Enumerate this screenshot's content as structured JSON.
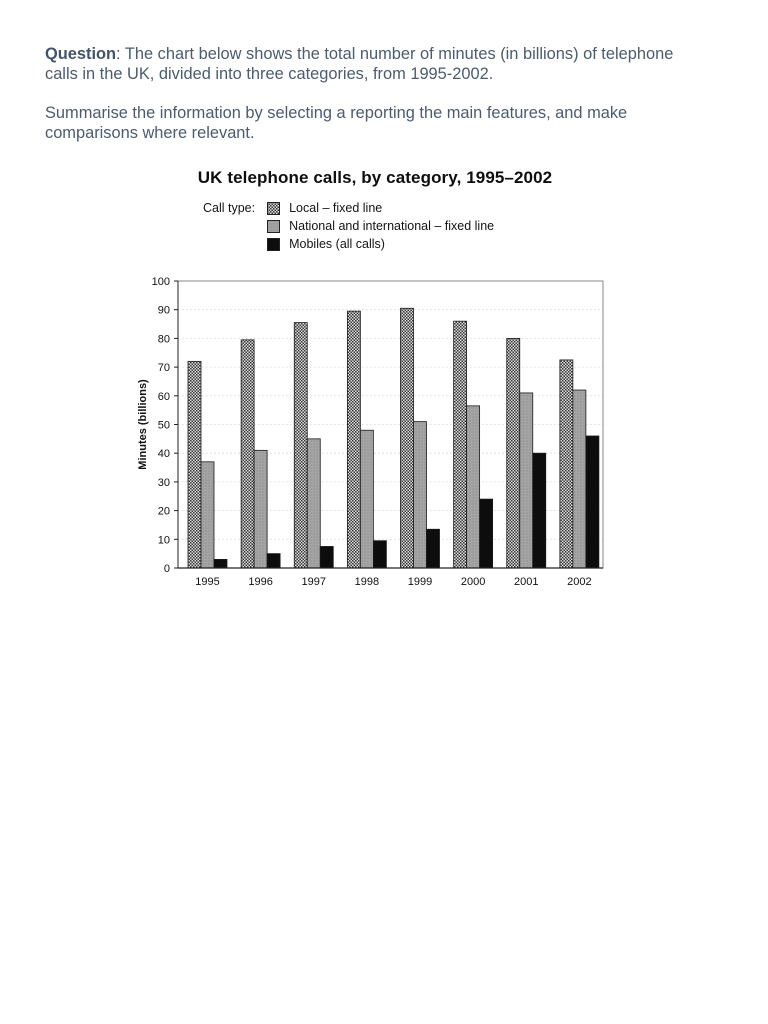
{
  "page": {
    "background": "#ffffff",
    "text_color": "#4c5b6d"
  },
  "question": {
    "label": "Question",
    "text": ": The chart below shows the total number of minutes (in billions) of telephone calls in the UK, divided into three categories, from 1995-2002.",
    "instruction": "Summarise the information by selecting a reporting the main features, and make comparisons where relevant."
  },
  "chart_data": {
    "type": "bar",
    "title": "UK telephone calls, by category, 1995–2002",
    "legend_caption": "Call type:",
    "ylabel": "Minutes (billions)",
    "xlabel": "",
    "ylim": [
      0,
      100
    ],
    "ytick_step": 10,
    "grid": "horizontal-dotted",
    "legend_position": "top-left",
    "categories": [
      "1995",
      "1996",
      "1997",
      "1998",
      "1999",
      "2000",
      "2001",
      "2002"
    ],
    "series": [
      {
        "id": "local",
        "name": "Local – fixed line",
        "pattern": "dotted-dark",
        "values": [
          72,
          79.5,
          85.5,
          89.5,
          90.5,
          86,
          80,
          72.5
        ]
      },
      {
        "id": "national",
        "name": "National and international – fixed line",
        "pattern": "gray",
        "values": [
          37,
          41,
          45,
          48,
          51,
          56.5,
          61,
          62
        ]
      },
      {
        "id": "mobiles",
        "name": "Mobiles (all calls)",
        "pattern": "solid-black",
        "values": [
          3,
          5,
          7.5,
          9.5,
          13.5,
          24,
          40,
          46
        ]
      }
    ],
    "colors": {
      "bar_outline": "#1a1a1a",
      "grid": "#d2d2d2",
      "axis": "#222222",
      "frame": "#888888",
      "text": "#111111",
      "solid_black": "#0d0d0d"
    }
  }
}
